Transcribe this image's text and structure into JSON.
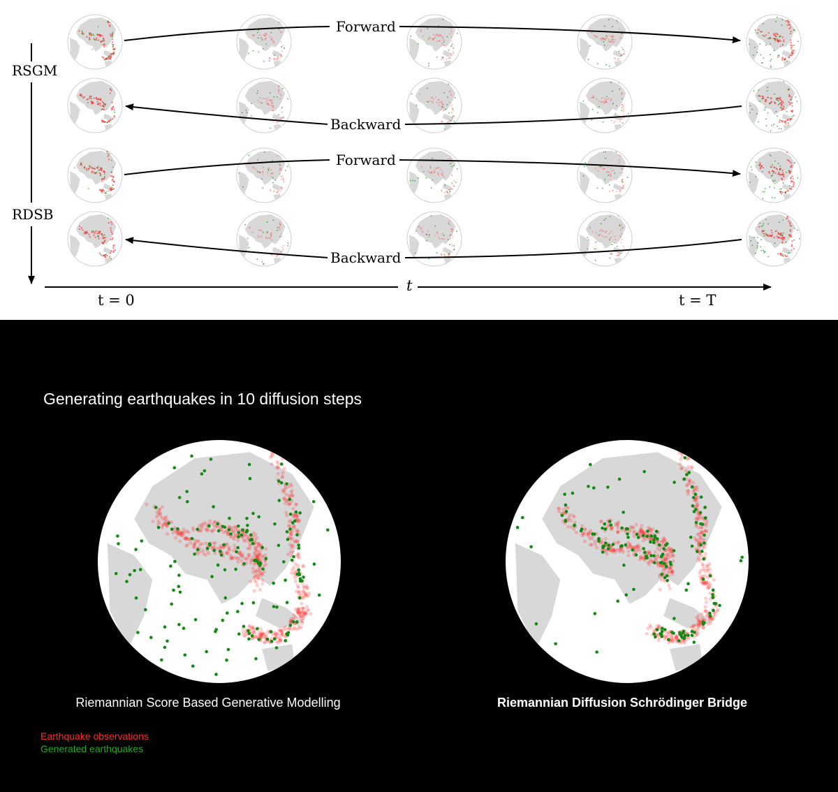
{
  "top_figure": {
    "row_groups": [
      {
        "label": "RSGM",
        "rows": [
          {
            "label": "Forward",
            "direction": "forward"
          },
          {
            "label": "Backward",
            "direction": "backward"
          }
        ]
      },
      {
        "label": "RDSB",
        "rows": [
          {
            "label": "Forward",
            "direction": "forward"
          },
          {
            "label": "Backward",
            "direction": "backward"
          }
        ]
      }
    ],
    "columns": 5,
    "time_axis_label": "t",
    "t_start_label": "t = 0",
    "t_end_label": "t = T"
  },
  "bottom_figure": {
    "title": "Generating earthquakes in 10 diffusion steps",
    "panels": [
      {
        "caption": "Riemannian Score Based Generative Modelling",
        "caption_bold": false
      },
      {
        "caption": "Riemannian Diffusion Schrödinger Bridge",
        "caption_bold": true
      }
    ],
    "legend": [
      {
        "label": "Earthquake observations",
        "color": "#ff2a2a"
      },
      {
        "label": "Generated earthquakes",
        "color": "#1faa1f"
      }
    ]
  },
  "colors": {
    "observation": "#ff2020",
    "generated": "#138a13",
    "land": "#d8d8d8",
    "ocean": "#ffffff"
  }
}
